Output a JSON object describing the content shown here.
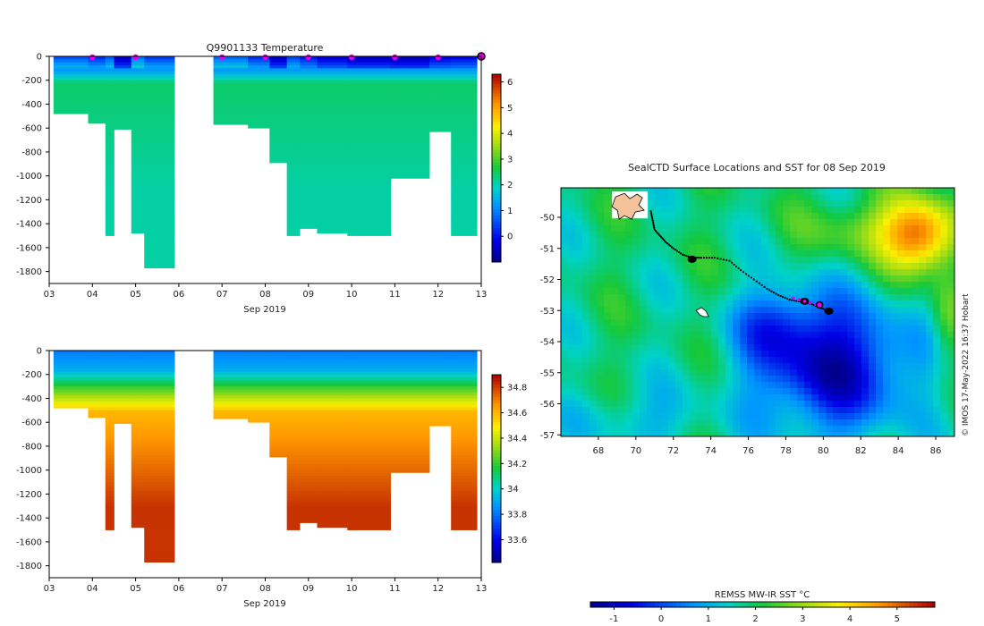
{
  "chart_data": [
    {
      "type": "heatmap",
      "title": "Q9901133  Temperature",
      "xlabel": "Sep 2019",
      "ylabel": "",
      "x_ticks": [
        "03",
        "04",
        "05",
        "06",
        "07",
        "08",
        "09",
        "10",
        "11",
        "12",
        "13"
      ],
      "y_ticks": [
        "0",
        "-200",
        "-400",
        "-600",
        "-800",
        "-1000",
        "-1200",
        "-1400",
        "-1600",
        "-1800"
      ],
      "xlim": [
        3,
        13
      ],
      "ylim": [
        -1900,
        0
      ],
      "colorbar": {
        "ticks": [
          "0",
          "1",
          "2",
          "3",
          "4",
          "5",
          "6"
        ],
        "range": [
          -1,
          6.3
        ]
      },
      "surface_markers_x": [
        4.0,
        5.0,
        7.0,
        8.0,
        9.0,
        10.0,
        11.0,
        12.0
      ],
      "latest_marker_x": 13.0,
      "profiles": [
        {
          "x0": 3.1,
          "x1": 3.9,
          "max_depth": 480,
          "surface": 0.6
        },
        {
          "x0": 3.9,
          "x1": 4.3,
          "max_depth": 560,
          "surface": 0.3
        },
        {
          "x0": 4.3,
          "x1": 4.5,
          "max_depth": 1500,
          "surface": 0.7
        },
        {
          "x0": 4.5,
          "x1": 4.9,
          "max_depth": 610,
          "surface": -0.5
        },
        {
          "x0": 4.9,
          "x1": 5.2,
          "max_depth": 1480,
          "surface": 0.9
        },
        {
          "x0": 5.2,
          "x1": 5.9,
          "max_depth": 1770,
          "surface": 0.4
        },
        {
          "x0": 6.8,
          "x1": 7.6,
          "max_depth": 570,
          "surface": 0.8
        },
        {
          "x0": 7.6,
          "x1": 8.1,
          "max_depth": 600,
          "surface": 0.3
        },
        {
          "x0": 8.1,
          "x1": 8.5,
          "max_depth": 890,
          "surface": -0.5
        },
        {
          "x0": 8.5,
          "x1": 8.8,
          "max_depth": 1500,
          "surface": 0.5
        },
        {
          "x0": 8.8,
          "x1": 9.2,
          "max_depth": 1440,
          "surface": 0.1
        },
        {
          "x0": 9.2,
          "x1": 9.9,
          "max_depth": 1480,
          "surface": -0.3
        },
        {
          "x0": 9.9,
          "x1": 10.9,
          "max_depth": 1500,
          "surface": -0.5
        },
        {
          "x0": 10.9,
          "x1": 11.8,
          "max_depth": 1020,
          "surface": -0.6
        },
        {
          "x0": 11.8,
          "x1": 12.3,
          "max_depth": 630,
          "surface": -0.2
        },
        {
          "x0": 12.3,
          "x1": 12.9,
          "max_depth": 1500,
          "surface": -0.1
        }
      ]
    },
    {
      "type": "heatmap",
      "title": "",
      "xlabel": "Sep 2019",
      "ylabel": "",
      "x_ticks": [
        "03",
        "04",
        "05",
        "06",
        "07",
        "08",
        "09",
        "10",
        "11",
        "12",
        "13"
      ],
      "y_ticks": [
        "0",
        "-200",
        "-400",
        "-600",
        "-800",
        "-1000",
        "-1200",
        "-1400",
        "-1600",
        "-1800"
      ],
      "xlim": [
        3,
        13
      ],
      "ylim": [
        -1900,
        0
      ],
      "colorbar": {
        "ticks": [
          "33.6",
          "33.8",
          "34",
          "34.2",
          "34.4",
          "34.6",
          "34.8"
        ],
        "range": [
          33.42,
          34.9
        ]
      },
      "profiles": [
        {
          "x0": 3.1,
          "x1": 3.9,
          "max_depth": 480
        },
        {
          "x0": 3.9,
          "x1": 4.3,
          "max_depth": 560
        },
        {
          "x0": 4.3,
          "x1": 4.5,
          "max_depth": 1500
        },
        {
          "x0": 4.5,
          "x1": 4.9,
          "max_depth": 610
        },
        {
          "x0": 4.9,
          "x1": 5.2,
          "max_depth": 1480
        },
        {
          "x0": 5.2,
          "x1": 5.9,
          "max_depth": 1770
        },
        {
          "x0": 6.8,
          "x1": 7.6,
          "max_depth": 570
        },
        {
          "x0": 7.6,
          "x1": 8.1,
          "max_depth": 600
        },
        {
          "x0": 8.1,
          "x1": 8.5,
          "max_depth": 890
        },
        {
          "x0": 8.5,
          "x1": 8.8,
          "max_depth": 1500
        },
        {
          "x0": 8.8,
          "x1": 9.2,
          "max_depth": 1440
        },
        {
          "x0": 9.2,
          "x1": 9.9,
          "max_depth": 1480
        },
        {
          "x0": 9.9,
          "x1": 10.9,
          "max_depth": 1500
        },
        {
          "x0": 10.9,
          "x1": 11.8,
          "max_depth": 1020
        },
        {
          "x0": 11.8,
          "x1": 12.3,
          "max_depth": 630
        },
        {
          "x0": 12.3,
          "x1": 12.9,
          "max_depth": 1500
        }
      ]
    },
    {
      "type": "heatmap",
      "title": "SealCTD Surface Locations and SST for 08 Sep 2019",
      "xlabel": "",
      "ylabel": "",
      "x_ticks": [
        "68",
        "70",
        "72",
        "74",
        "76",
        "78",
        "80",
        "82",
        "84",
        "86"
      ],
      "y_ticks": [
        "-50",
        "-51",
        "-52",
        "-53",
        "-54",
        "-55",
        "-56",
        "-57"
      ],
      "xlim": [
        66,
        87
      ],
      "ylim": [
        -57.05,
        -49.05
      ],
      "colorbar": {
        "label": "REMSS MW-IR SST °C",
        "ticks": [
          "-1",
          "0",
          "1",
          "2",
          "3",
          "4",
          "5"
        ],
        "range": [
          -1.5,
          5.8
        ]
      },
      "credit": "© IMOS 17-May-2022 16:37 Hobart",
      "track": [
        [
          70.8,
          -49.8
        ],
        [
          70.9,
          -50.1
        ],
        [
          71.0,
          -50.4
        ],
        [
          71.3,
          -50.6
        ],
        [
          71.6,
          -50.8
        ],
        [
          72.0,
          -51.0
        ],
        [
          72.5,
          -51.2
        ],
        [
          73.0,
          -51.3
        ],
        [
          73.5,
          -51.3
        ],
        [
          74.2,
          -51.3
        ],
        [
          75.0,
          -51.4
        ],
        [
          75.6,
          -51.7
        ],
        [
          76.3,
          -52.0
        ],
        [
          77.0,
          -52.3
        ],
        [
          77.6,
          -52.5
        ],
        [
          78.2,
          -52.65
        ],
        [
          78.8,
          -52.72
        ],
        [
          79.4,
          -52.8
        ],
        [
          79.9,
          -52.92
        ],
        [
          80.4,
          -53.05
        ]
      ],
      "recent_track": [
        [
          78.4,
          -52.6
        ],
        [
          78.7,
          -52.65
        ],
        [
          79.0,
          -52.7
        ],
        [
          79.3,
          -52.75
        ],
        [
          79.6,
          -52.8
        ]
      ],
      "latest_position": [
        79.8,
        -52.82
      ],
      "clusters": [
        [
          73.0,
          -51.35
        ],
        [
          80.3,
          -53.02
        ],
        [
          79.0,
          -52.7
        ]
      ],
      "islands": [
        [
          69.3,
          -49.4
        ],
        [
          73.5,
          -53.05
        ]
      ]
    }
  ]
}
